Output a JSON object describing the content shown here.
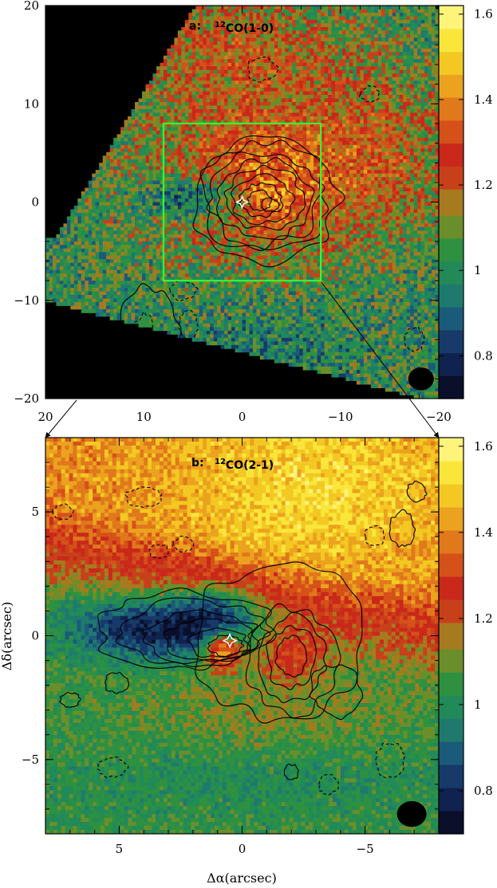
{
  "colorbar": {
    "colors": [
      "#0a0f2a",
      "#10224e",
      "#173a6a",
      "#1b5b7a",
      "#1f7a6e",
      "#218a58",
      "#2e9140",
      "#6a8f2a",
      "#a67a1e",
      "#c8401a",
      "#c9281a",
      "#d6501a",
      "#e0781c",
      "#eba21e",
      "#f3c822",
      "#fae63a",
      "#fff47a"
    ],
    "ticks": [
      "0.8",
      "1",
      "1.2",
      "1.4",
      "1.6"
    ],
    "tick_values": [
      0.8,
      1.0,
      1.2,
      1.4,
      1.6
    ],
    "range": [
      0.7,
      1.62
    ]
  },
  "chart_data": [
    {
      "type": "heatmap",
      "panel_label": "a:",
      "title": "12CO(1-0)",
      "title_sup": "12",
      "title_main": "CO(1-0)",
      "xlim": [
        20,
        -20
      ],
      "ylim": [
        -20,
        20
      ],
      "xticks": [
        "20",
        "10",
        "0",
        "−10",
        "−20"
      ],
      "xtick_values": [
        20,
        10,
        0,
        -10,
        -20
      ],
      "yticks": [
        "−20",
        "−10",
        "0",
        "10",
        "20"
      ],
      "ytick_values": [
        -20,
        -10,
        0,
        10,
        20
      ],
      "zoom_box": {
        "x": [
          8,
          -8
        ],
        "y": [
          -8,
          8
        ],
        "color": "#33ff33"
      },
      "beam": {
        "x": -18.2,
        "y": -18.0,
        "major": 1.8,
        "minor": 1.3
      },
      "center_marker": {
        "x": 0,
        "y": 0
      },
      "value_range": [
        0.7,
        1.62
      ]
    },
    {
      "type": "heatmap",
      "panel_label": "b:",
      "title": "12CO(2-1)",
      "title_sup": "12",
      "title_main": "CO(2-1)",
      "xlim": [
        8,
        -8
      ],
      "ylim": [
        -8,
        8
      ],
      "xticks": [
        "5",
        "0",
        "−5"
      ],
      "xtick_values": [
        5,
        0,
        -5
      ],
      "yticks": [
        "−5",
        "0",
        "5"
      ],
      "ytick_values": [
        -5,
        0,
        5
      ],
      "xlabel": "Δα(arcsec)",
      "ylabel": "Δδ(arcsec)",
      "beam": {
        "x": -6.9,
        "y": -7.2,
        "major": 0.8,
        "minor": 0.6
      },
      "center_marker": {
        "x": 0.5,
        "y": -0.2
      },
      "value_range": [
        0.7,
        1.62
      ]
    }
  ]
}
